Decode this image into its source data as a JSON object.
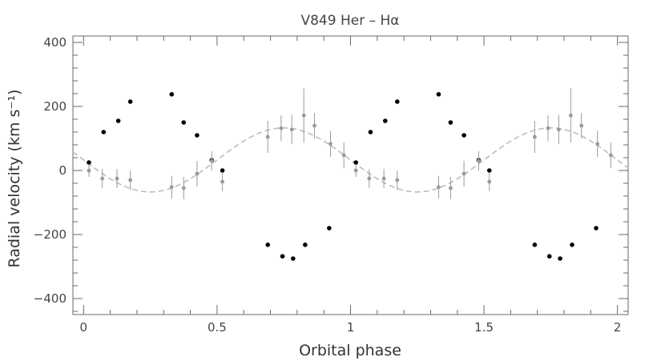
{
  "chart_data": {
    "type": "scatter",
    "title": "V849 Her – Hα",
    "xlabel": "Orbital phase",
    "ylabel": "Radial velocity (km s⁻¹)",
    "xlim": [
      -0.04,
      2.04
    ],
    "ylim": [
      -450,
      420
    ],
    "xticks": [
      0,
      0.5,
      1,
      1.5,
      2
    ],
    "xtick_labels": [
      "0",
      "0.5",
      "1",
      "1.5",
      "2"
    ],
    "yticks": [
      -400,
      -200,
      0,
      200,
      400
    ],
    "ytick_labels": [
      "−400",
      "−200",
      "0",
      "200",
      "400"
    ],
    "grid": false,
    "series": [
      {
        "marker": "black-dot",
        "color": "#000000",
        "x": [
          0.02,
          0.075,
          0.13,
          0.175,
          0.33,
          0.375,
          0.425,
          0.48,
          0.52,
          0.69,
          0.745,
          0.785,
          0.83,
          0.92,
          1.02,
          1.075,
          1.13,
          1.175,
          1.33,
          1.375,
          1.425,
          1.48,
          1.52,
          1.69,
          1.745,
          1.785,
          1.83,
          1.92
        ],
        "y": [
          25,
          120,
          155,
          215,
          238,
          150,
          110,
          32,
          0,
          -232,
          -268,
          -275,
          -232,
          -180,
          25,
          120,
          155,
          215,
          238,
          150,
          110,
          32,
          0,
          -232,
          -268,
          -275,
          -232,
          -180
        ]
      },
      {
        "marker": "grey-dot-errorbar",
        "color": "#9a9a9a",
        "x": [
          0.02,
          0.07,
          0.125,
          0.175,
          0.33,
          0.375,
          0.425,
          0.48,
          0.52,
          0.69,
          0.74,
          0.78,
          0.825,
          0.865,
          0.925,
          0.975,
          1.02,
          1.07,
          1.125,
          1.175,
          1.33,
          1.375,
          1.425,
          1.48,
          1.52,
          1.69,
          1.74,
          1.78,
          1.825,
          1.865,
          1.925,
          1.975
        ],
        "y": [
          0,
          -25,
          -25,
          -30,
          -52,
          -55,
          -10,
          30,
          -35,
          105,
          132,
          128,
          172,
          140,
          83,
          48,
          0,
          -25,
          -25,
          -30,
          -52,
          -55,
          -10,
          30,
          -35,
          105,
          132,
          128,
          172,
          140,
          83,
          48
        ],
        "err": [
          20,
          30,
          30,
          30,
          35,
          35,
          40,
          30,
          30,
          50,
          40,
          45,
          85,
          40,
          40,
          40,
          20,
          30,
          30,
          30,
          35,
          35,
          40,
          30,
          30,
          50,
          40,
          45,
          85,
          40,
          40,
          40
        ]
      }
    ],
    "fit_curve": {
      "style": "dashed",
      "color": "#bdbdbd",
      "gamma": 33,
      "amplitude": 100,
      "phase_of_max": 0.75
    }
  },
  "colors": {
    "axis": "#6a6a6a",
    "observed": "#000000",
    "grey_points": "#9a9a9a",
    "fit": "#bdbdbd"
  }
}
